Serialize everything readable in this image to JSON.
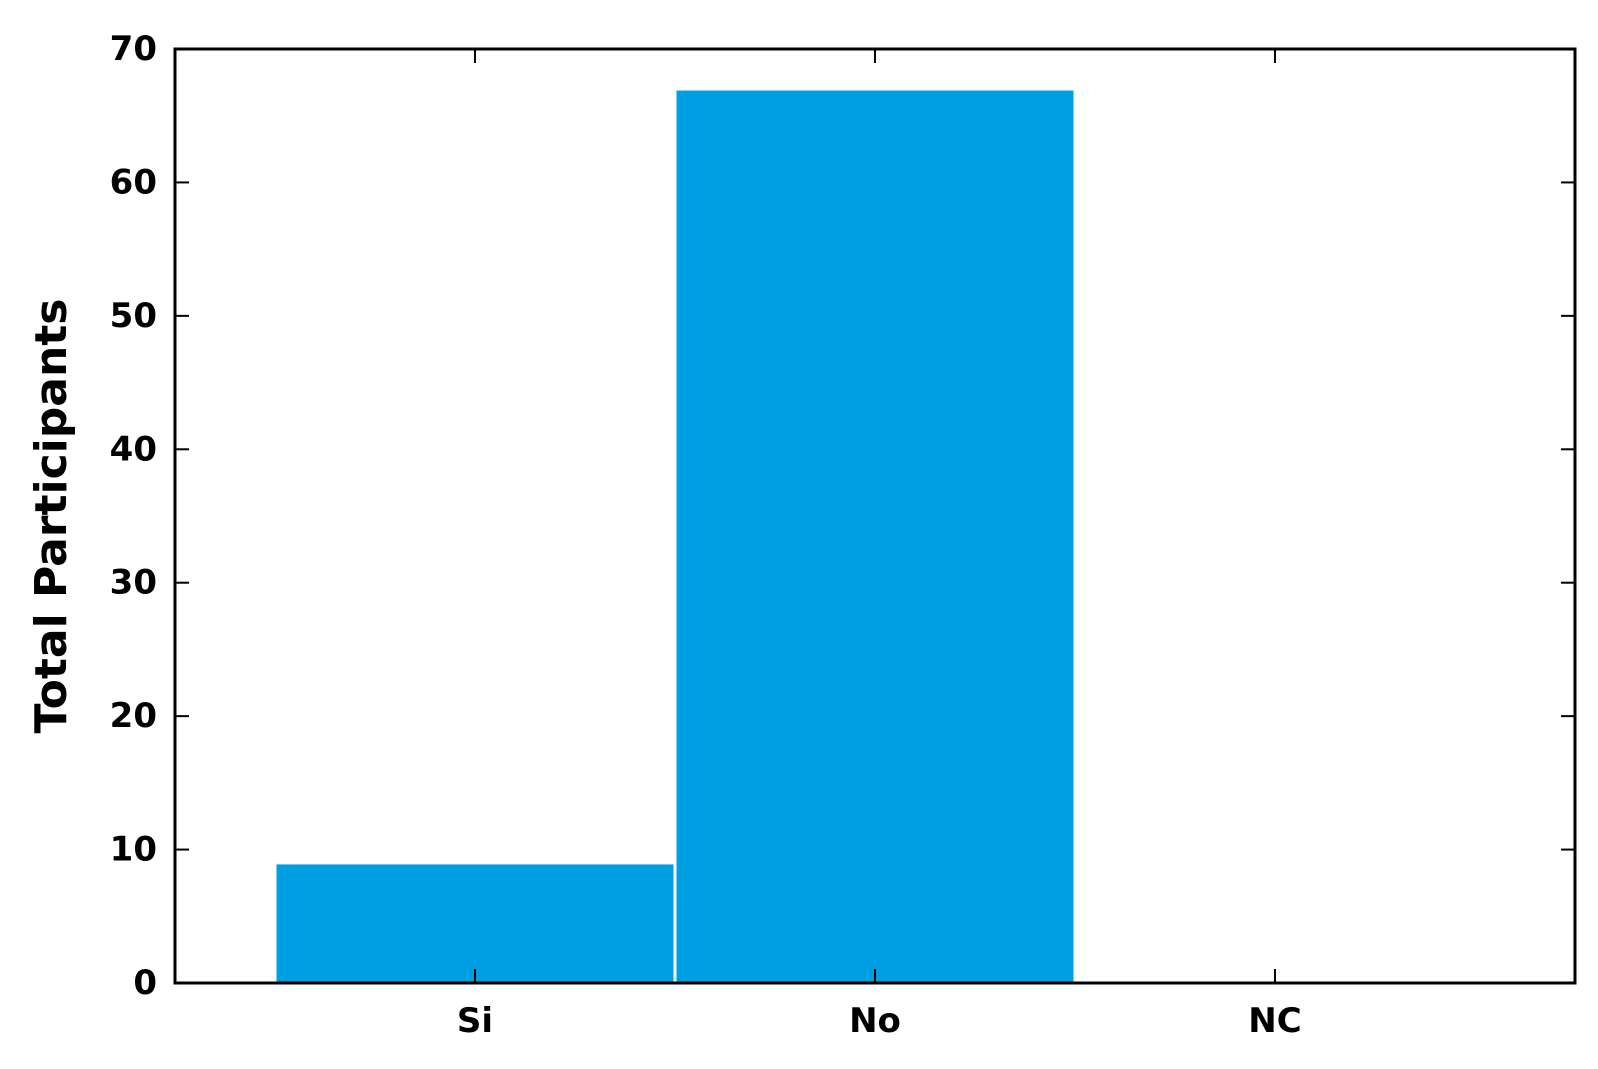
{
  "chart_data": {
    "type": "bar",
    "categories": [
      "Si",
      "No",
      "NC"
    ],
    "values": [
      9,
      67,
      0
    ],
    "title": "",
    "xlabel": "",
    "ylabel": "Total Participants",
    "ylim": [
      0,
      70
    ],
    "yticks": [
      0,
      10,
      20,
      30,
      40,
      50,
      60,
      70
    ],
    "grid": false,
    "bar_color": "#009fe3"
  }
}
